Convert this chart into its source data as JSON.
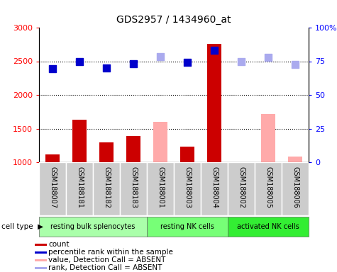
{
  "title": "GDS2957 / 1434960_at",
  "samples": [
    "GSM188007",
    "GSM188181",
    "GSM188182",
    "GSM188183",
    "GSM188001",
    "GSM188003",
    "GSM188004",
    "GSM188002",
    "GSM188005",
    "GSM188006"
  ],
  "group_configs": [
    {
      "indices": [
        0,
        1,
        2,
        3
      ],
      "label": "resting bulk splenocytes",
      "color": "#aaffaa"
    },
    {
      "indices": [
        4,
        5,
        6
      ],
      "label": "resting NK cells",
      "color": "#77ff77"
    },
    {
      "indices": [
        7,
        8,
        9
      ],
      "label": "activated NK cells",
      "color": "#33ee33"
    }
  ],
  "bar_values": [
    1120,
    1630,
    1290,
    1390,
    1600,
    1230,
    2760,
    1000,
    1720,
    1080
  ],
  "bar_absent": [
    false,
    false,
    false,
    false,
    true,
    false,
    false,
    true,
    true,
    true
  ],
  "percentile_values": [
    2390,
    2490,
    2400,
    2460,
    2570,
    2480,
    2660,
    2500,
    2560,
    2450
  ],
  "percentile_absent": [
    false,
    false,
    false,
    false,
    true,
    false,
    false,
    true,
    true,
    true
  ],
  "ylim_left": [
    1000,
    3000
  ],
  "yticks_left": [
    1000,
    1500,
    2000,
    2500,
    3000
  ],
  "yticks_right_labels": [
    "0",
    "25",
    "50",
    "75",
    "100%"
  ],
  "bar_color_present": "#cc0000",
  "bar_color_absent": "#ffaaaa",
  "dot_color_present": "#0000cc",
  "dot_color_absent": "#aaaaee",
  "bar_width": 0.55,
  "dot_size": 55,
  "background_color": "#ffffff",
  "sample_bg_color": "#cccccc",
  "sample_border_color": "#ffffff",
  "grid_color": "black",
  "cell_type_label": "cell type",
  "legend_items": [
    {
      "label": "count",
      "color": "#cc0000"
    },
    {
      "label": "percentile rank within the sample",
      "color": "#0000cc"
    },
    {
      "label": "value, Detection Call = ABSENT",
      "color": "#ffaaaa"
    },
    {
      "label": "rank, Detection Call = ABSENT",
      "color": "#aaaaee"
    }
  ]
}
